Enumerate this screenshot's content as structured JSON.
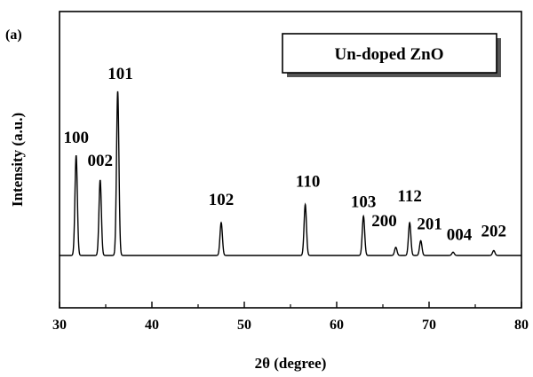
{
  "panel_label": "(a)",
  "chart_data": {
    "type": "line",
    "title": "",
    "xlabel": "2θ (degree)",
    "ylabel": "Intensity (a.u.)",
    "xlim": [
      30,
      80
    ],
    "xticks": [
      30,
      40,
      50,
      60,
      70,
      80
    ],
    "y_tick_labels": false,
    "grid": false,
    "legend": {
      "placement": "top-right",
      "entries": [
        "Un-doped ZnO"
      ]
    },
    "series": [
      {
        "name": "Un-doped ZnO",
        "baseline": 0,
        "peaks": [
          {
            "label": "100",
            "x": 31.8,
            "y": 0.61
          },
          {
            "label": "002",
            "x": 34.4,
            "y": 0.46
          },
          {
            "label": "101",
            "x": 36.3,
            "y": 1.0
          },
          {
            "label": "102",
            "x": 47.5,
            "y": 0.2
          },
          {
            "label": "110",
            "x": 56.6,
            "y": 0.31
          },
          {
            "label": "103",
            "x": 62.9,
            "y": 0.24
          },
          {
            "label": "200",
            "x": 66.4,
            "y": 0.05
          },
          {
            "label": "112",
            "x": 67.9,
            "y": 0.2
          },
          {
            "label": "201",
            "x": 69.1,
            "y": 0.09
          },
          {
            "label": "004",
            "x": 72.6,
            "y": 0.02
          },
          {
            "label": "202",
            "x": 77.0,
            "y": 0.03
          }
        ]
      }
    ]
  }
}
